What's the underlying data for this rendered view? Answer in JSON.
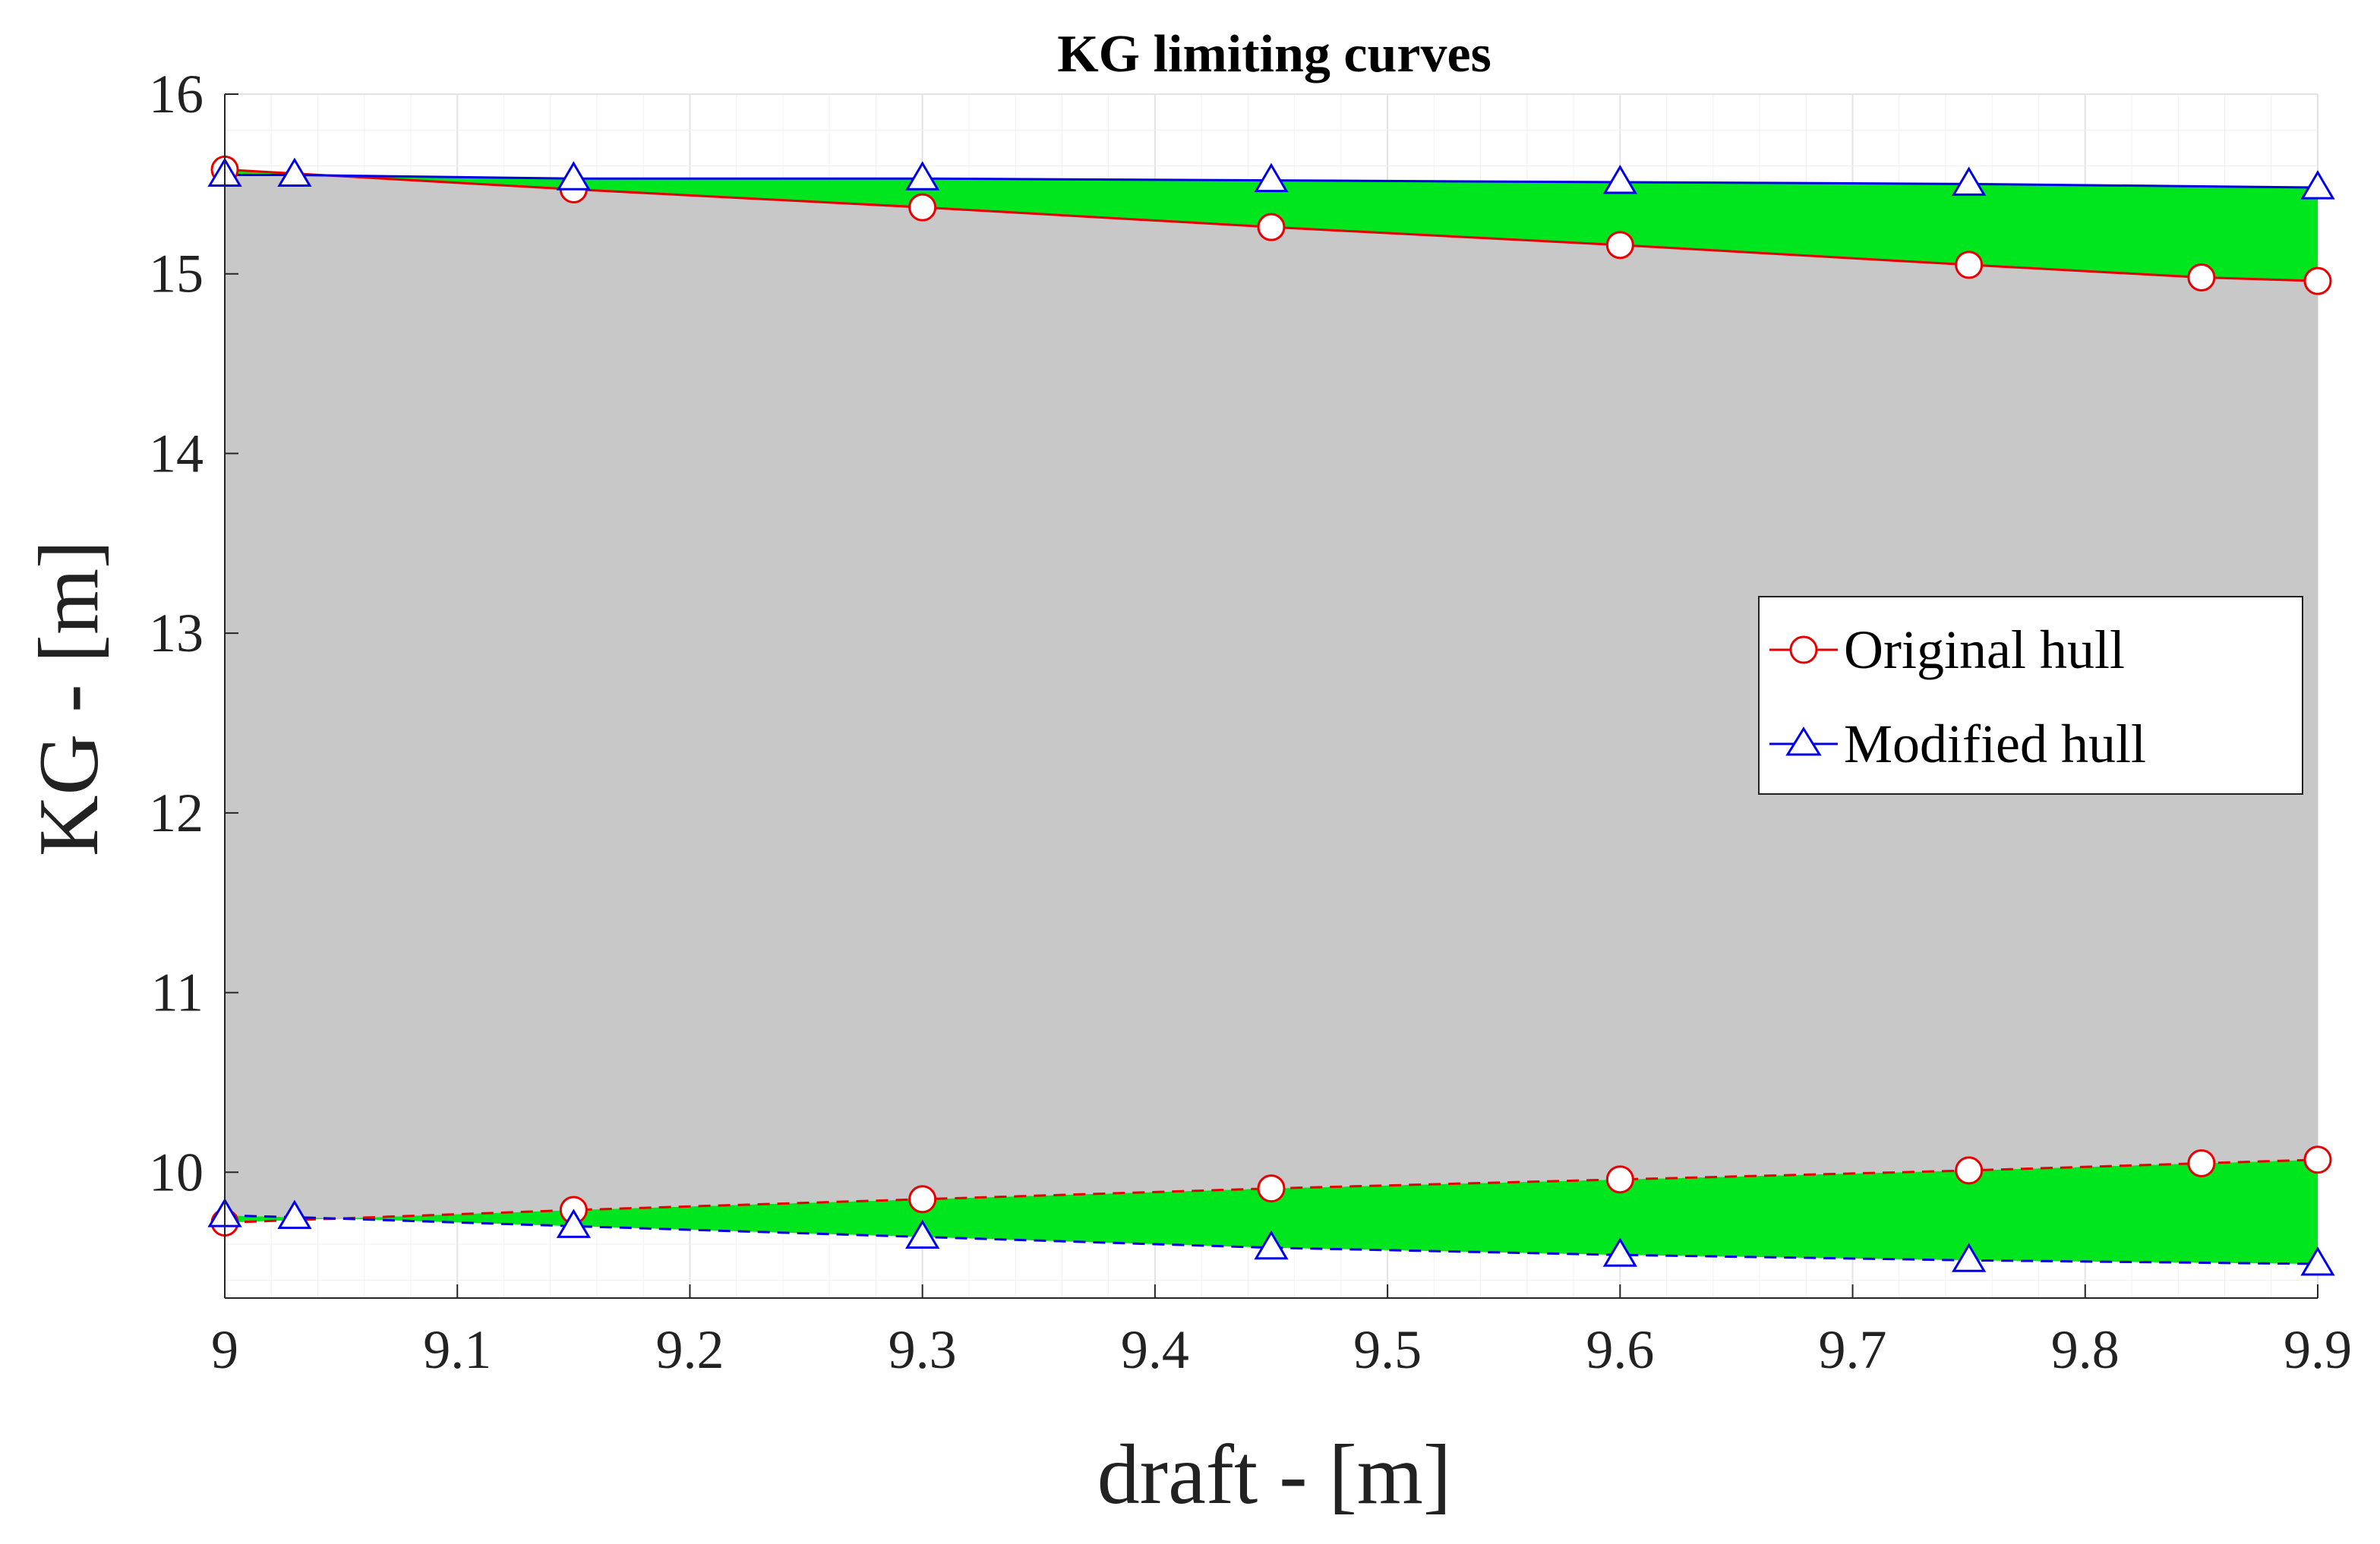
{
  "chart_data": {
    "type": "line",
    "title": "KG limiting curves",
    "xlabel": "draft - [m]",
    "ylabel": "KG - [m]",
    "xlim": [
      9,
      9.9
    ],
    "ylim": [
      9.3,
      16
    ],
    "x_ticks": [
      9,
      9.1,
      9.2,
      9.3,
      9.4,
      9.5,
      9.6,
      9.7,
      9.8,
      9.9
    ],
    "x_tick_labels": [
      "9",
      "9.1",
      "9.2",
      "9.3",
      "9.4",
      "9.5",
      "9.6",
      "9.7",
      "9.8",
      "9.9"
    ],
    "y_ticks": [
      10,
      11,
      12,
      13,
      14,
      15,
      16
    ],
    "y_tick_labels": [
      "10",
      "11",
      "12",
      "13",
      "14",
      "15",
      "16"
    ],
    "grid": true,
    "legend_position": "right",
    "series": [
      {
        "name": "Original hull",
        "color": "#e60000",
        "marker": "circle",
        "upper": {
          "x": [
            9,
            9.15,
            9.3,
            9.45,
            9.6,
            9.75,
            9.85,
            9.9
          ],
          "y": [
            15.58,
            15.47,
            15.37,
            15.26,
            15.16,
            15.05,
            14.98,
            14.96
          ]
        },
        "lower": {
          "x": [
            9,
            9.15,
            9.3,
            9.45,
            9.6,
            9.75,
            9.85,
            9.9
          ],
          "y": [
            9.72,
            9.79,
            9.85,
            9.91,
            9.96,
            10.01,
            10.05,
            10.07
          ]
        }
      },
      {
        "name": "Modified hull",
        "color": "#0000e6",
        "marker": "triangle",
        "upper": {
          "x": [
            9,
            9.03,
            9.15,
            9.3,
            9.45,
            9.6,
            9.75,
            9.9
          ],
          "y": [
            15.55,
            15.55,
            15.53,
            15.53,
            15.52,
            15.51,
            15.5,
            15.48
          ]
        },
        "lower": {
          "x": [
            9,
            9.03,
            9.15,
            9.3,
            9.45,
            9.6,
            9.75,
            9.9
          ],
          "y": [
            9.76,
            9.75,
            9.7,
            9.64,
            9.58,
            9.54,
            9.51,
            9.49
          ]
        }
      }
    ],
    "fill_colors": {
      "common_region": "#c8c8c8",
      "difference_region": "#00e61e"
    }
  }
}
